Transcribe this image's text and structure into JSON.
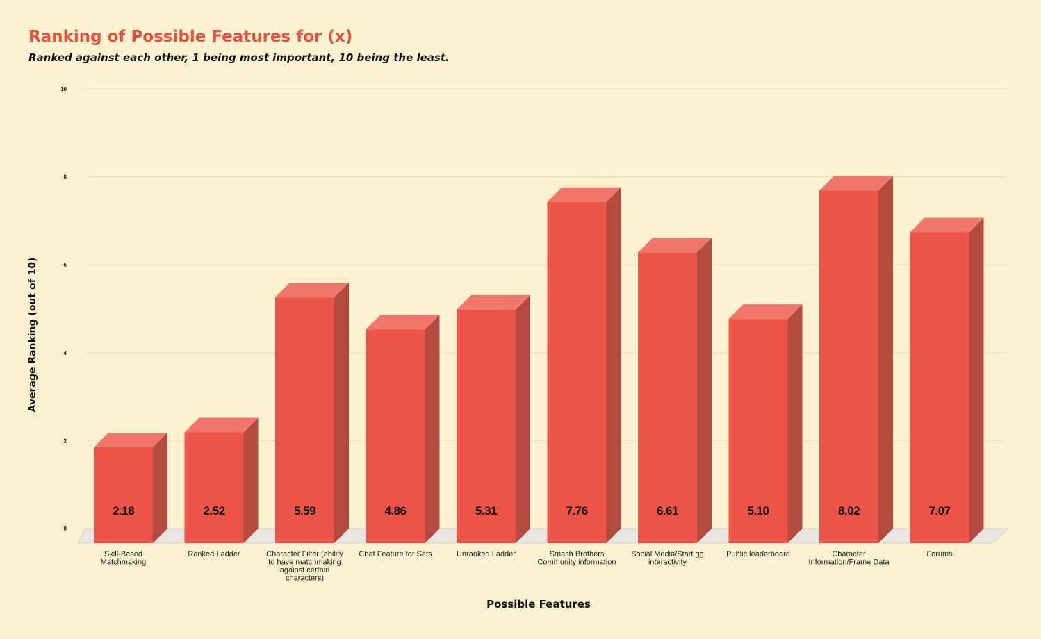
{
  "chart_data": {
    "type": "bar",
    "title": "Ranking of Possible Features for (x)",
    "subtitle": "Ranked against each other, 1 being most important, 10 being the least.",
    "xlabel": "Possible Features",
    "ylabel": "Average Ranking (out of 10)",
    "ylim": [
      0,
      10
    ],
    "yticks": [
      0,
      2,
      4,
      6,
      8,
      10
    ],
    "grid": true,
    "style": "3d-bars",
    "bar_color": "#ec5447",
    "categories": [
      [
        "Skill-Based",
        "Matchmaking"
      ],
      [
        "Ranked Ladder"
      ],
      [
        "Character Filter (ability",
        "to have matchmaking",
        "against certain",
        "characters)"
      ],
      [
        "Chat Feature for Sets"
      ],
      [
        "Unranked Ladder"
      ],
      [
        "Smash Brothers",
        "Community information"
      ],
      [
        "Social Media/Start.gg",
        "interactivity"
      ],
      [
        "Public leaderboard"
      ],
      [
        "Character",
        "Information/Frame Data"
      ],
      [
        "Forums"
      ]
    ],
    "values": [
      2.18,
      2.52,
      5.59,
      4.86,
      5.31,
      7.76,
      6.61,
      5.1,
      8.02,
      7.07
    ],
    "data_labels": [
      "2.18",
      "2.52",
      "5.59",
      "4.86",
      "5.31",
      "7.76",
      "6.61",
      "5.10",
      "8.02",
      "7.07"
    ]
  }
}
